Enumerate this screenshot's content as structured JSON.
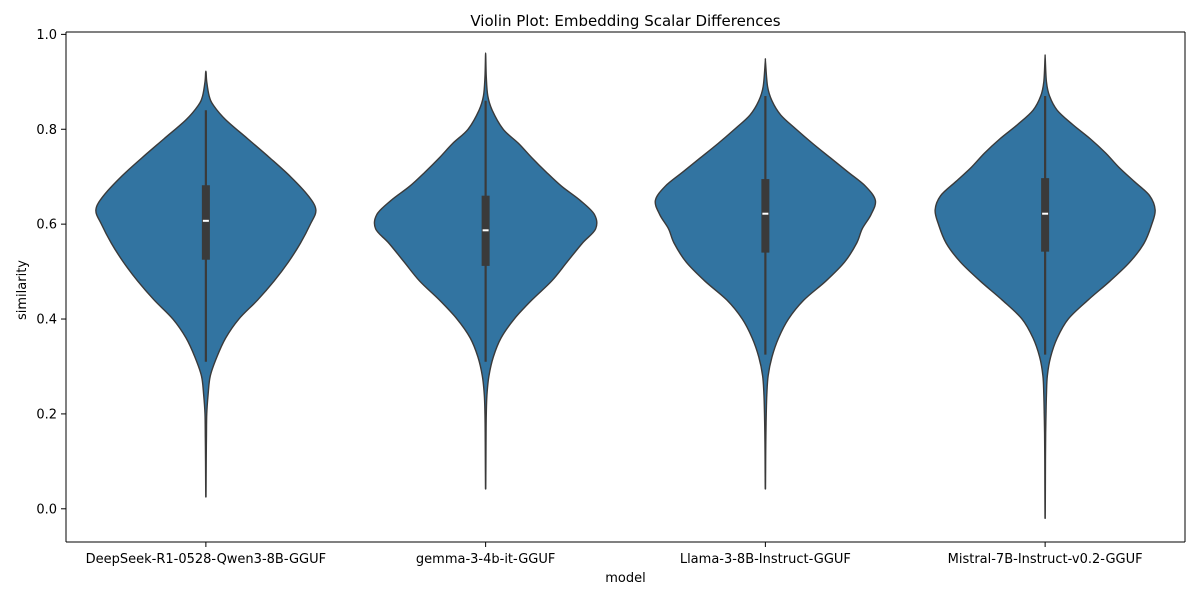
{
  "chart_data": {
    "type": "violin",
    "title": "Violin Plot: Embedding Scalar Differences",
    "xlabel": "model",
    "ylabel": "similarity",
    "ylim": [
      -0.07,
      1.005
    ],
    "yticks": [
      "0.0",
      "0.2",
      "0.4",
      "0.6",
      "0.8",
      "1.0"
    ],
    "ytick_values": [
      0.0,
      0.2,
      0.4,
      0.6,
      0.8,
      1.0
    ],
    "grid": false,
    "legend": "none",
    "colors": {
      "violin_fill": "#3274a1",
      "violin_edge": "#3a3a3a",
      "box": "#3a3a3a",
      "median": "#ffffff"
    },
    "categories": [
      "DeepSeek-R1-0528-Qwen3-8B-GGUF",
      "gemma-3-4b-it-GGUF",
      "Llama-3-8B-Instruct-GGUF",
      "Mistral-7B-Instruct-v0.2-GGUF"
    ],
    "violins": [
      {
        "name": "DeepSeek-R1-0528-Qwen3-8B-GGUF",
        "min": 0.025,
        "q1": 0.525,
        "median": 0.607,
        "q3": 0.682,
        "max": 0.92,
        "whisker_low": 0.31,
        "whisker_high": 0.84,
        "density": [
          [
            0.025,
            0.001
          ],
          [
            0.06,
            0.002
          ],
          [
            0.1,
            0.003
          ],
          [
            0.15,
            0.005
          ],
          [
            0.2,
            0.008
          ],
          [
            0.24,
            0.02
          ],
          [
            0.28,
            0.04
          ],
          [
            0.32,
            0.1
          ],
          [
            0.36,
            0.18
          ],
          [
            0.4,
            0.3
          ],
          [
            0.44,
            0.47
          ],
          [
            0.48,
            0.62
          ],
          [
            0.52,
            0.75
          ],
          [
            0.56,
            0.86
          ],
          [
            0.6,
            0.95
          ],
          [
            0.63,
            1.0
          ],
          [
            0.66,
            0.93
          ],
          [
            0.7,
            0.77
          ],
          [
            0.74,
            0.58
          ],
          [
            0.78,
            0.38
          ],
          [
            0.82,
            0.18
          ],
          [
            0.85,
            0.07
          ],
          [
            0.87,
            0.03
          ],
          [
            0.9,
            0.008
          ],
          [
            0.92,
            0.002
          ]
        ]
      },
      {
        "name": "gemma-3-4b-it-GGUF",
        "min": 0.042,
        "q1": 0.512,
        "median": 0.587,
        "q3": 0.66,
        "max": 0.955,
        "whisker_low": 0.31,
        "whisker_high": 0.86,
        "density": [
          [
            0.042,
            0.001
          ],
          [
            0.08,
            0.002
          ],
          [
            0.12,
            0.003
          ],
          [
            0.16,
            0.004
          ],
          [
            0.2,
            0.006
          ],
          [
            0.24,
            0.012
          ],
          [
            0.28,
            0.03
          ],
          [
            0.32,
            0.07
          ],
          [
            0.36,
            0.14
          ],
          [
            0.4,
            0.26
          ],
          [
            0.44,
            0.42
          ],
          [
            0.48,
            0.6
          ],
          [
            0.52,
            0.74
          ],
          [
            0.56,
            0.88
          ],
          [
            0.59,
            1.0
          ],
          [
            0.62,
            0.99
          ],
          [
            0.65,
            0.86
          ],
          [
            0.68,
            0.69
          ],
          [
            0.71,
            0.55
          ],
          [
            0.74,
            0.42
          ],
          [
            0.77,
            0.3
          ],
          [
            0.8,
            0.16
          ],
          [
            0.84,
            0.06
          ],
          [
            0.87,
            0.02
          ],
          [
            0.91,
            0.006
          ],
          [
            0.955,
            0.001
          ]
        ]
      },
      {
        "name": "Llama-3-8B-Instruct-GGUF",
        "min": 0.042,
        "q1": 0.54,
        "median": 0.622,
        "q3": 0.695,
        "max": 0.942,
        "whisker_low": 0.325,
        "whisker_high": 0.87,
        "density": [
          [
            0.042,
            0.001
          ],
          [
            0.08,
            0.002
          ],
          [
            0.12,
            0.003
          ],
          [
            0.16,
            0.005
          ],
          [
            0.2,
            0.008
          ],
          [
            0.24,
            0.013
          ],
          [
            0.28,
            0.025
          ],
          [
            0.32,
            0.06
          ],
          [
            0.36,
            0.12
          ],
          [
            0.4,
            0.21
          ],
          [
            0.44,
            0.35
          ],
          [
            0.48,
            0.55
          ],
          [
            0.52,
            0.72
          ],
          [
            0.56,
            0.83
          ],
          [
            0.59,
            0.88
          ],
          [
            0.62,
            0.96
          ],
          [
            0.65,
            1.0
          ],
          [
            0.68,
            0.91
          ],
          [
            0.71,
            0.75
          ],
          [
            0.74,
            0.59
          ],
          [
            0.77,
            0.43
          ],
          [
            0.8,
            0.28
          ],
          [
            0.83,
            0.14
          ],
          [
            0.86,
            0.06
          ],
          [
            0.89,
            0.02
          ],
          [
            0.942,
            0.001
          ]
        ]
      },
      {
        "name": "Mistral-7B-Instruct-v0.2-GGUF",
        "min": -0.02,
        "q1": 0.542,
        "median": 0.622,
        "q3": 0.697,
        "max": 0.95,
        "whisker_low": 0.325,
        "whisker_high": 0.87,
        "density": [
          [
            -0.02,
            0.001
          ],
          [
            0.04,
            0.002
          ],
          [
            0.1,
            0.003
          ],
          [
            0.16,
            0.005
          ],
          [
            0.2,
            0.008
          ],
          [
            0.24,
            0.012
          ],
          [
            0.28,
            0.02
          ],
          [
            0.32,
            0.05
          ],
          [
            0.36,
            0.11
          ],
          [
            0.4,
            0.21
          ],
          [
            0.44,
            0.39
          ],
          [
            0.48,
            0.59
          ],
          [
            0.52,
            0.77
          ],
          [
            0.56,
            0.9
          ],
          [
            0.6,
            0.97
          ],
          [
            0.63,
            1.0
          ],
          [
            0.66,
            0.95
          ],
          [
            0.69,
            0.81
          ],
          [
            0.72,
            0.67
          ],
          [
            0.75,
            0.55
          ],
          [
            0.78,
            0.41
          ],
          [
            0.81,
            0.25
          ],
          [
            0.84,
            0.11
          ],
          [
            0.87,
            0.04
          ],
          [
            0.9,
            0.012
          ],
          [
            0.95,
            0.001
          ]
        ]
      }
    ]
  }
}
